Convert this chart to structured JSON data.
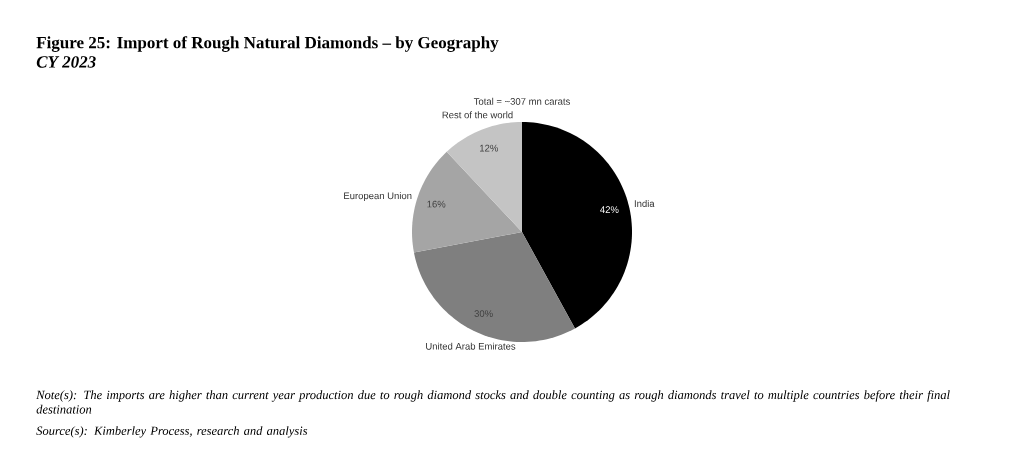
{
  "chart_data": {
    "type": "pie",
    "title": "Figure 25: Import of Rough Natural Diamonds – by Geography",
    "subtitle": "CY 2023",
    "categories": [
      "India",
      "United Arab Emirates",
      "European Union",
      "Rest of the world"
    ],
    "values": [
      42,
      30,
      16,
      12
    ],
    "colors": [
      "#000000",
      "#7f7f7f",
      "#a5a5a5",
      "#c4c4c4"
    ],
    "value_labels": [
      "42%",
      "30%",
      "16%",
      "12%"
    ],
    "annotations": [
      "Total = ~307 mn carats",
      "Note(s): The imports are higher than current year production due to rough diamond stocks and double counting as rough diamonds travel to multiple countries before their final destination",
      "Source(s): Kimberley Process, research and analysis"
    ]
  }
}
